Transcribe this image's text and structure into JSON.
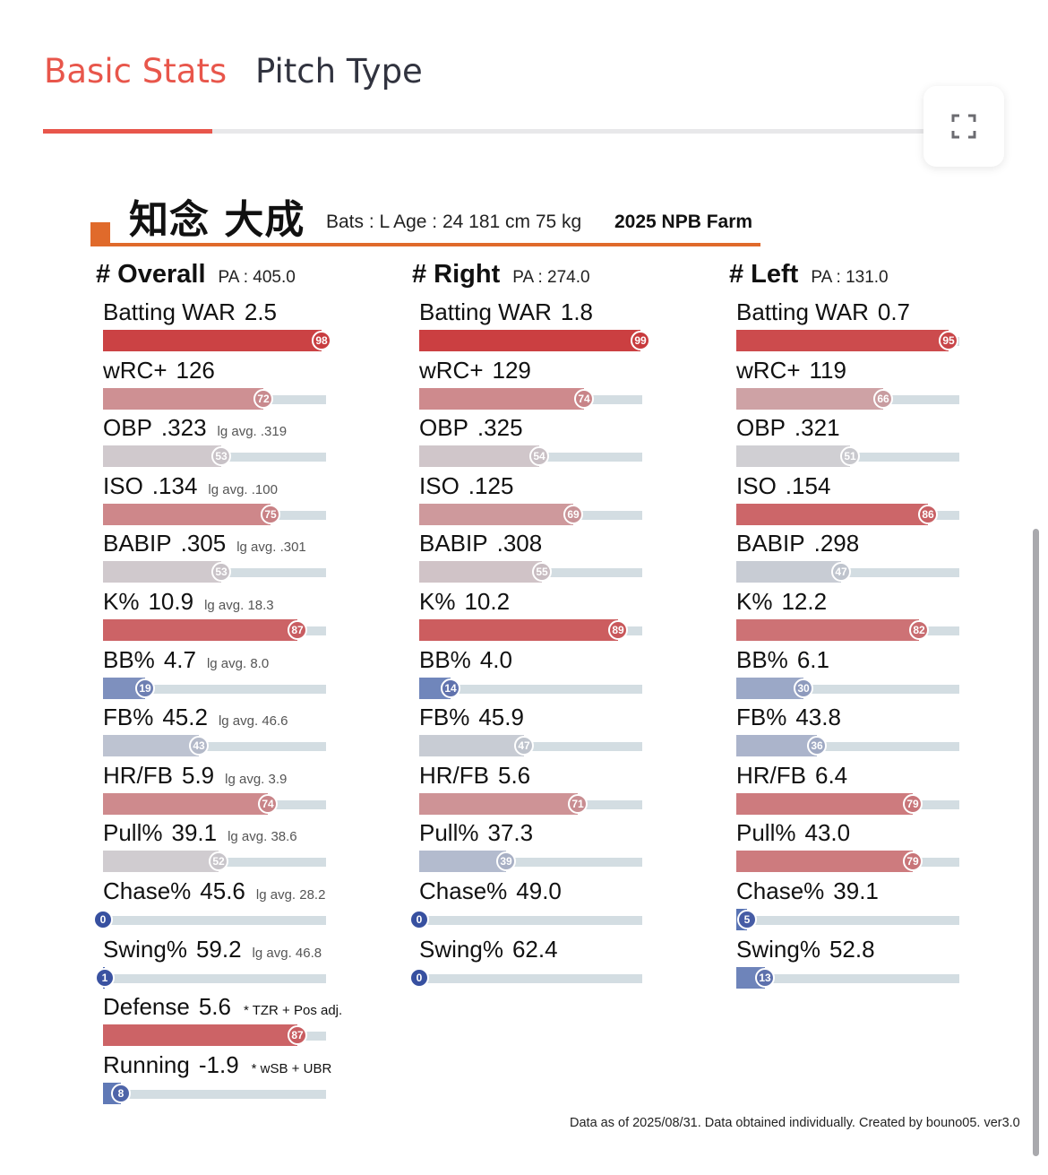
{
  "tabs": [
    {
      "label": "Basic Stats",
      "active": true
    },
    {
      "label": "Pitch Type",
      "active": false
    }
  ],
  "colors": {
    "accent": "#e8564b",
    "header_orange": "#e06a2b",
    "track": "#d3dde2"
  },
  "header": {
    "player_name": "知念  大成",
    "info": "Bats : L  Age : 24  181 cm 75 kg",
    "league": "2025 NPB Farm"
  },
  "columns": [
    {
      "title": "# Overall",
      "pa": "PA : 405.0",
      "stats": [
        {
          "label": "Batting WAR",
          "value": "2.5",
          "note": "",
          "pct": 98
        },
        {
          "label": "wRC+",
          "value": "126",
          "note": "",
          "pct": 72
        },
        {
          "label": "OBP",
          "value": ".323",
          "note": "lg avg. .319",
          "pct": 53
        },
        {
          "label": "ISO",
          "value": ".134",
          "note": "lg avg. .100",
          "pct": 75
        },
        {
          "label": "BABIP",
          "value": ".305",
          "note": "lg avg. .301",
          "pct": 53
        },
        {
          "label": "K%",
          "value": "10.9",
          "note": "lg avg. 18.3",
          "pct": 87
        },
        {
          "label": "BB%",
          "value": "4.7",
          "note": "lg avg. 8.0",
          "pct": 19
        },
        {
          "label": "FB%",
          "value": "45.2",
          "note": "lg avg. 46.6",
          "pct": 43
        },
        {
          "label": "HR/FB",
          "value": "5.9",
          "note": "lg avg. 3.9",
          "pct": 74
        },
        {
          "label": "Pull%",
          "value": "39.1",
          "note": "lg avg. 38.6",
          "pct": 52
        },
        {
          "label": "Chase%",
          "value": "45.6",
          "note": "lg avg. 28.2",
          "pct": 0
        },
        {
          "label": "Swing%",
          "value": "59.2",
          "note": "lg avg. 46.8",
          "pct": 1
        },
        {
          "label": "Defense",
          "value": "5.6",
          "note2": "* TZR + Pos adj.",
          "pct": 87
        },
        {
          "label": "Running",
          "value": "-1.9",
          "note2": "* wSB + UBR",
          "pct": 8
        }
      ]
    },
    {
      "title": "# Right",
      "pa": "PA : 274.0",
      "stats": [
        {
          "label": "Batting WAR",
          "value": "1.8",
          "pct": 99
        },
        {
          "label": "wRC+",
          "value": "129",
          "pct": 74
        },
        {
          "label": "OBP",
          "value": ".325",
          "pct": 54
        },
        {
          "label": "ISO",
          "value": ".125",
          "pct": 69
        },
        {
          "label": "BABIP",
          "value": ".308",
          "pct": 55
        },
        {
          "label": "K%",
          "value": "10.2",
          "pct": 89
        },
        {
          "label": "BB%",
          "value": "4.0",
          "pct": 14
        },
        {
          "label": "FB%",
          "value": "45.9",
          "pct": 47
        },
        {
          "label": "HR/FB",
          "value": "5.6",
          "pct": 71
        },
        {
          "label": "Pull%",
          "value": "37.3",
          "pct": 39
        },
        {
          "label": "Chase%",
          "value": "49.0",
          "pct": 0
        },
        {
          "label": "Swing%",
          "value": "62.4",
          "pct": 0
        }
      ]
    },
    {
      "title": "# Left",
      "pa": "PA : 131.0",
      "stats": [
        {
          "label": "Batting WAR",
          "value": "0.7",
          "pct": 95
        },
        {
          "label": "wRC+",
          "value": "119",
          "pct": 66
        },
        {
          "label": "OBP",
          "value": ".321",
          "pct": 51
        },
        {
          "label": "ISO",
          "value": ".154",
          "pct": 86
        },
        {
          "label": "BABIP",
          "value": ".298",
          "pct": 47
        },
        {
          "label": "K%",
          "value": "12.2",
          "pct": 82
        },
        {
          "label": "BB%",
          "value": "6.1",
          "pct": 30
        },
        {
          "label": "FB%",
          "value": "43.8",
          "pct": 36
        },
        {
          "label": "HR/FB",
          "value": "6.4",
          "pct": 79
        },
        {
          "label": "Pull%",
          "value": "43.0",
          "pct": 79
        },
        {
          "label": "Chase%",
          "value": "39.1",
          "pct": 5
        },
        {
          "label": "Swing%",
          "value": "52.8",
          "pct": 13
        }
      ]
    }
  ],
  "footer": "Data as of 2025/08/31. Data obtained individually. Created by bouno05.  ver3.0"
}
